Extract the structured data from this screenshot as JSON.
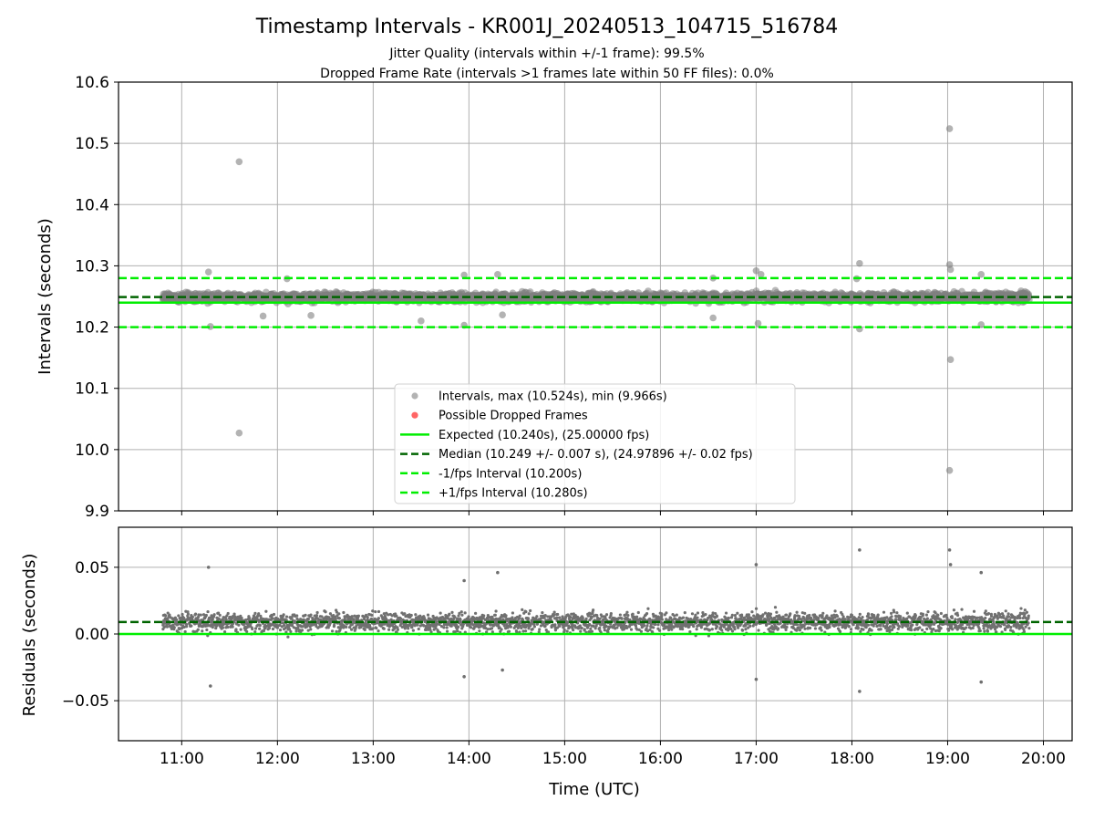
{
  "chart_data": {
    "type": "scatter",
    "title": "Timestamp Intervals - KR001J_20240513_104715_516784",
    "subtitle_lines": [
      "Jitter Quality (intervals within +/-1 frame): 99.5%",
      "Dropped Frame Rate (intervals >1 frames late within 50 FF files): 0.0%"
    ],
    "xlabel": "Time (UTC)",
    "x_tick_labels": [
      "11:00",
      "12:00",
      "13:00",
      "14:00",
      "15:00",
      "16:00",
      "17:00",
      "18:00",
      "19:00",
      "20:00"
    ],
    "x_ticks_hours": [
      11,
      12,
      13,
      14,
      15,
      16,
      17,
      18,
      19,
      20
    ],
    "xlim_hours": [
      10.34,
      20.3
    ],
    "data_x_range_hours": [
      10.8,
      19.85
    ],
    "grid": true,
    "top_panel": {
      "ylabel": "Intervals (seconds)",
      "ylim": [
        9.9,
        10.6
      ],
      "y_ticks": [
        9.9,
        10.0,
        10.1,
        10.2,
        10.3,
        10.4,
        10.5,
        10.6
      ],
      "y_tick_labels": [
        "9.9",
        "10.0",
        "10.1",
        "10.2",
        "10.3",
        "10.4",
        "10.5",
        "10.6"
      ],
      "expected": 10.24,
      "median": 10.249,
      "minus_fps": 10.2,
      "plus_fps": 10.28,
      "bulk_center": 10.249,
      "bulk_spread": 0.007,
      "outliers": [
        {
          "x": 11.28,
          "y": 10.29
        },
        {
          "x": 11.3,
          "y": 10.201
        },
        {
          "x": 11.6,
          "y": 10.47
        },
        {
          "x": 11.6,
          "y": 10.027
        },
        {
          "x": 11.85,
          "y": 10.218
        },
        {
          "x": 12.1,
          "y": 10.279
        },
        {
          "x": 12.35,
          "y": 10.219
        },
        {
          "x": 13.5,
          "y": 10.21
        },
        {
          "x": 13.95,
          "y": 10.285
        },
        {
          "x": 13.95,
          "y": 10.203
        },
        {
          "x": 14.3,
          "y": 10.286
        },
        {
          "x": 14.35,
          "y": 10.22
        },
        {
          "x": 16.55,
          "y": 10.28
        },
        {
          "x": 16.55,
          "y": 10.215
        },
        {
          "x": 17.0,
          "y": 10.292
        },
        {
          "x": 17.02,
          "y": 10.206
        },
        {
          "x": 17.05,
          "y": 10.286
        },
        {
          "x": 18.05,
          "y": 10.279
        },
        {
          "x": 18.08,
          "y": 10.304
        },
        {
          "x": 18.08,
          "y": 10.197
        },
        {
          "x": 19.02,
          "y": 10.524
        },
        {
          "x": 19.02,
          "y": 10.302
        },
        {
          "x": 19.03,
          "y": 10.294
        },
        {
          "x": 19.03,
          "y": 10.147
        },
        {
          "x": 19.02,
          "y": 9.966
        },
        {
          "x": 19.35,
          "y": 10.286
        },
        {
          "x": 19.35,
          "y": 10.204
        }
      ],
      "legend": {
        "placement": "lower-center",
        "entries": [
          {
            "label": "Intervals, max (10.524s), min (9.966s)",
            "kind": "point",
            "color": "#808080"
          },
          {
            "label": "Possible Dropped Frames",
            "kind": "point",
            "color": "#ff0000"
          },
          {
            "label": "Expected (10.240s), (25.00000 fps)",
            "kind": "solid",
            "color": "#00ee00"
          },
          {
            "label": "Median (10.249 +/- 0.007 s), (24.97896 +/- 0.02 fps)",
            "kind": "dashed",
            "color": "#006400"
          },
          {
            "label": "-1/fps Interval (10.200s)",
            "kind": "dashed",
            "color": "#00ee00"
          },
          {
            "label": "+1/fps Interval (10.280s)",
            "kind": "dashed",
            "color": "#00ee00"
          }
        ]
      }
    },
    "bottom_panel": {
      "ylabel": "Residuals (seconds)",
      "ylim": [
        -0.08,
        0.08
      ],
      "y_ticks": [
        -0.05,
        0.0,
        0.05
      ],
      "y_tick_labels": [
        "−0.05",
        "0.00",
        "0.05"
      ],
      "zero_line": 0.0,
      "median_residual": 0.009,
      "outliers": [
        {
          "x": 11.28,
          "y": 0.05
        },
        {
          "x": 11.3,
          "y": -0.039
        },
        {
          "x": 17.0,
          "y": 0.052
        },
        {
          "x": 17.0,
          "y": -0.034
        },
        {
          "x": 18.08,
          "y": 0.063
        },
        {
          "x": 18.08,
          "y": -0.043
        },
        {
          "x": 19.02,
          "y": 0.063
        },
        {
          "x": 19.03,
          "y": 0.052
        },
        {
          "x": 19.35,
          "y": 0.046
        },
        {
          "x": 19.35,
          "y": -0.036
        },
        {
          "x": 13.95,
          "y": 0.04
        },
        {
          "x": 13.95,
          "y": -0.032
        },
        {
          "x": 14.3,
          "y": 0.046
        },
        {
          "x": 14.35,
          "y": -0.027
        }
      ]
    },
    "colors": {
      "points": "#808080",
      "expected": "#00ee00",
      "median": "#006400",
      "fps_bounds": "#00ee00",
      "dropped": "#ff0000"
    }
  }
}
